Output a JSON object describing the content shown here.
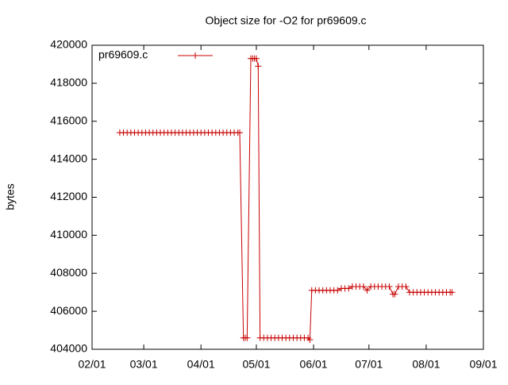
{
  "chart_data": {
    "type": "line",
    "title": "Object size for -O2 for pr69609.c",
    "y_label": "bytes",
    "x": [
      "02/16",
      "02/18",
      "02/20",
      "02/22",
      "02/24",
      "02/26",
      "02/28",
      "03/02",
      "03/04",
      "03/06",
      "03/08",
      "03/10",
      "03/12",
      "03/14",
      "03/16",
      "03/18",
      "03/20",
      "03/22",
      "03/24",
      "03/26",
      "03/28",
      "03/30",
      "04/01",
      "04/03",
      "04/05",
      "04/07",
      "04/09",
      "04/11",
      "04/13",
      "04/15",
      "04/17",
      "04/19",
      "04/21",
      "04/22",
      "04/24",
      "04/25",
      "04/26",
      "04/28",
      "04/29",
      "04/30",
      "05/01",
      "05/02",
      "05/03",
      "05/05",
      "05/07",
      "05/09",
      "05/11",
      "05/13",
      "05/15",
      "05/17",
      "05/19",
      "05/21",
      "05/23",
      "05/25",
      "05/27",
      "05/29",
      "05/30",
      "05/31",
      "06/02",
      "06/04",
      "06/06",
      "06/08",
      "06/10",
      "06/12",
      "06/14",
      "06/16",
      "06/18",
      "06/20",
      "06/22",
      "06/24",
      "06/26",
      "06/28",
      "06/30",
      "07/02",
      "07/04",
      "07/06",
      "07/08",
      "07/10",
      "07/12",
      "07/14",
      "07/15",
      "07/17",
      "07/19",
      "07/21",
      "07/23",
      "07/25",
      "07/27",
      "07/29",
      "07/31",
      "08/02",
      "08/04",
      "08/06",
      "08/08",
      "08/10",
      "08/12",
      "08/14",
      "08/15"
    ],
    "series": [
      {
        "name": "pr69609.c",
        "color": "#c80000",
        "values": [
          415400,
          415400,
          415400,
          415400,
          415400,
          415400,
          415400,
          415400,
          415400,
          415400,
          415400,
          415400,
          415400,
          415400,
          415400,
          415400,
          415400,
          415400,
          415400,
          415400,
          415400,
          415400,
          415400,
          415400,
          415400,
          415400,
          415400,
          415400,
          415400,
          415400,
          415400,
          415400,
          415400,
          415400,
          404600,
          404600,
          404600,
          419300,
          419300,
          419300,
          419300,
          418900,
          404600,
          404600,
          404600,
          404600,
          404600,
          404600,
          404600,
          404600,
          404600,
          404600,
          404600,
          404600,
          404600,
          404600,
          404500,
          407100,
          407100,
          407100,
          407100,
          407100,
          407100,
          407100,
          407100,
          407200,
          407200,
          407200,
          407300,
          407300,
          407300,
          407300,
          407100,
          407300,
          407300,
          407300,
          407300,
          407300,
          407300,
          406900,
          406900,
          407300,
          407300,
          407300,
          407000,
          407000,
          407000,
          407000,
          407000,
          407000,
          407000,
          407000,
          407000,
          407000,
          407000,
          407000,
          407000
        ]
      }
    ],
    "xlim": [
      "02/01",
      "09/01"
    ],
    "xticks": [
      "02/01",
      "03/01",
      "04/01",
      "05/01",
      "06/01",
      "07/01",
      "08/01",
      "09/01"
    ],
    "ylim": [
      404000,
      420000
    ],
    "yticks": [
      404000,
      406000,
      408000,
      410000,
      412000,
      414000,
      416000,
      418000,
      420000
    ],
    "legend": "top-left",
    "grid": false
  }
}
